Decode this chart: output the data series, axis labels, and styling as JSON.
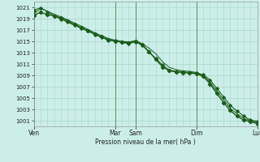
{
  "bg_color": "#cceee8",
  "plot_bg_color": "#cceee8",
  "grid_color": "#aad4ce",
  "line_color": "#1a5c1a",
  "xlabel_text": "Pression niveau de la mer( hPa )",
  "ylim": [
    1000.0,
    1022.0
  ],
  "yticks": [
    1001,
    1003,
    1005,
    1007,
    1009,
    1011,
    1013,
    1015,
    1017,
    1019,
    1021
  ],
  "xtick_labels": [
    "Ven",
    "Mar",
    "Sam",
    "Dim",
    "Lun"
  ],
  "xtick_positions": [
    0,
    12,
    15,
    24,
    33
  ],
  "x_total": 33,
  "vline_color": "#4a7a4a",
  "line1_x": [
    0,
    1,
    2,
    3,
    4,
    5,
    6,
    7,
    8,
    9,
    10,
    11,
    12,
    13,
    14,
    15,
    16,
    17,
    18,
    19,
    20,
    21,
    22,
    23,
    24,
    25,
    26,
    27,
    28,
    29,
    30,
    31,
    32,
    33
  ],
  "line1_y": [
    1019.8,
    1020.8,
    1020.3,
    1019.8,
    1019.3,
    1018.8,
    1018.2,
    1017.7,
    1017.1,
    1016.5,
    1016.0,
    1015.5,
    1015.2,
    1015.0,
    1014.9,
    1015.1,
    1014.6,
    1013.8,
    1012.8,
    1011.4,
    1010.4,
    1010.0,
    1009.8,
    1009.7,
    1009.5,
    1009.0,
    1007.8,
    1006.2,
    1004.7,
    1003.2,
    1002.2,
    1001.4,
    1001.0,
    1000.7
  ],
  "line2_x": [
    0,
    1,
    2,
    3,
    4,
    5,
    6,
    7,
    8,
    9,
    10,
    11,
    12,
    13,
    14,
    15,
    16,
    17,
    18,
    19,
    20,
    21,
    22,
    23,
    24,
    25,
    26,
    27,
    28,
    29,
    30,
    31,
    32,
    33
  ],
  "line2_y": [
    1020.5,
    1020.9,
    1020.2,
    1019.5,
    1018.9,
    1018.4,
    1017.8,
    1017.3,
    1016.8,
    1016.2,
    1015.7,
    1015.2,
    1015.1,
    1014.8,
    1014.6,
    1014.9,
    1014.3,
    1013.1,
    1012.0,
    1010.8,
    1009.9,
    1009.7,
    1009.6,
    1009.5,
    1009.4,
    1009.1,
    1008.2,
    1006.7,
    1005.2,
    1003.7,
    1002.7,
    1001.8,
    1001.1,
    1000.9
  ],
  "line3_x": [
    0,
    1,
    2,
    3,
    4,
    5,
    6,
    7,
    8,
    9,
    10,
    11,
    12,
    13,
    14,
    15,
    16,
    17,
    18,
    19,
    20,
    21,
    22,
    23,
    24,
    25,
    26,
    27,
    28,
    29,
    30,
    31,
    32,
    33
  ],
  "line3_y": [
    1019.6,
    1020.1,
    1019.7,
    1019.5,
    1019.1,
    1018.6,
    1018.0,
    1017.4,
    1016.9,
    1016.3,
    1015.8,
    1015.3,
    1015.0,
    1014.9,
    1014.7,
    1015.0,
    1014.4,
    1013.2,
    1011.8,
    1010.5,
    1009.8,
    1009.6,
    1009.5,
    1009.4,
    1009.3,
    1008.8,
    1007.5,
    1005.8,
    1004.2,
    1002.8,
    1001.8,
    1001.1,
    1000.8,
    1000.5
  ],
  "ytick_fontsize": 5.0,
  "xtick_fontsize": 5.5,
  "xlabel_fontsize": 5.5
}
